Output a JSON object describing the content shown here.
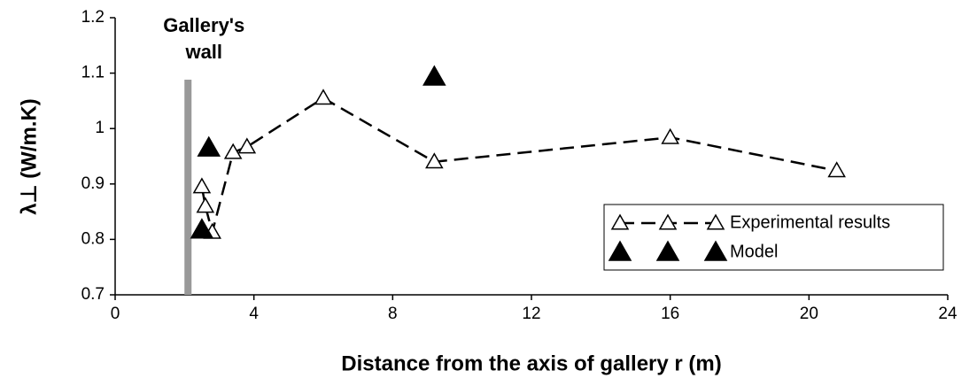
{
  "chart_data": {
    "type": "scatter-line",
    "xlabel": "Distance from the axis of gallery r (m)",
    "ylabel": "λ⊥ (W/m.K)",
    "xlim": [
      0,
      24
    ],
    "xticks": [
      0,
      4,
      8,
      12,
      16,
      20,
      24
    ],
    "ylim": [
      0.7,
      1.2
    ],
    "yticks": [
      0.7,
      0.8,
      0.9,
      1,
      1.1,
      1.2
    ],
    "annotation": {
      "lines": [
        "Gallery's",
        "wall"
      ],
      "x": 2.1
    },
    "legend": "lower right",
    "series": [
      {
        "name": "Experimental results",
        "color": "#000000",
        "marker": "hollow-triangle",
        "line": "dashed",
        "x": [
          2.5,
          2.6,
          2.8,
          3.4,
          3.8,
          6.0,
          9.2,
          16.0,
          20.8
        ],
        "values": [
          0.895,
          0.86,
          0.813,
          0.957,
          0.967,
          1.055,
          0.94,
          0.984,
          0.924
        ]
      },
      {
        "name": "Model",
        "color": "#000000",
        "marker": "filled-triangle",
        "line": "none",
        "x": [
          2.7,
          2.5,
          9.2
        ],
        "values": [
          0.965,
          0.817,
          1.093
        ]
      }
    ]
  }
}
